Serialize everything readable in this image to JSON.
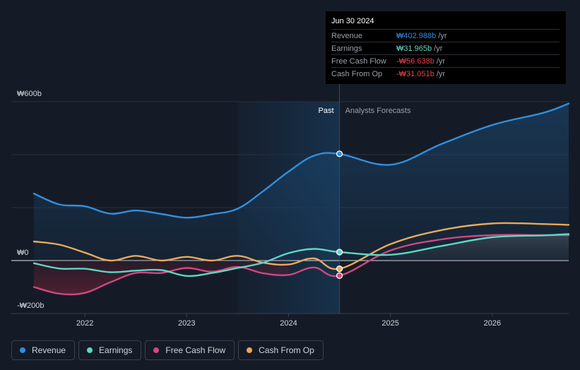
{
  "chart_data": {
    "type": "line",
    "title": "",
    "y_axis": {
      "unit_prefix": "₩",
      "tick_labels": [
        "₩600b",
        "₩0",
        "-₩200b"
      ],
      "ylim": [
        -200,
        600
      ]
    },
    "x_axis": {
      "tick_labels": [
        "2022",
        "2023",
        "2024",
        "2025",
        "2026"
      ],
      "xlim": [
        2021.5,
        2026.75
      ]
    },
    "divider_x": 2024.5,
    "past_shade_start": 2023.5,
    "region_labels": {
      "past": "Past",
      "forecast": "Analysts Forecasts"
    },
    "series": [
      {
        "name": "Revenue",
        "color": "#2f8fe0",
        "fill": true,
        "points": [
          [
            2021.5,
            253
          ],
          [
            2021.75,
            212
          ],
          [
            2022.0,
            205
          ],
          [
            2022.25,
            177
          ],
          [
            2022.5,
            189
          ],
          [
            2022.75,
            176
          ],
          [
            2023.0,
            162
          ],
          [
            2023.25,
            175
          ],
          [
            2023.5,
            196
          ],
          [
            2023.75,
            262
          ],
          [
            2024.0,
            336
          ],
          [
            2024.25,
            396
          ],
          [
            2024.5,
            403
          ],
          [
            2025.0,
            362
          ],
          [
            2025.5,
            440
          ],
          [
            2026.0,
            512
          ],
          [
            2026.5,
            558
          ],
          [
            2026.75,
            593
          ]
        ]
      },
      {
        "name": "Earnings",
        "color": "#5ed6c4",
        "fill": false,
        "points": [
          [
            2021.5,
            -10
          ],
          [
            2021.75,
            -30
          ],
          [
            2022.0,
            -31
          ],
          [
            2022.25,
            -44
          ],
          [
            2022.5,
            -38
          ],
          [
            2022.75,
            -36
          ],
          [
            2023.0,
            -58
          ],
          [
            2023.25,
            -47
          ],
          [
            2023.5,
            -28
          ],
          [
            2023.75,
            -8
          ],
          [
            2024.0,
            28
          ],
          [
            2024.25,
            44
          ],
          [
            2024.5,
            32
          ],
          [
            2025.0,
            22
          ],
          [
            2025.5,
            55
          ],
          [
            2026.0,
            88
          ],
          [
            2026.5,
            95
          ],
          [
            2026.75,
            100
          ]
        ]
      },
      {
        "name": "Free Cash Flow",
        "color": "#d0477f",
        "fill": false,
        "points": [
          [
            2021.5,
            -100
          ],
          [
            2021.75,
            -125
          ],
          [
            2022.0,
            -122
          ],
          [
            2022.25,
            -82
          ],
          [
            2022.5,
            -47
          ],
          [
            2022.75,
            -47
          ],
          [
            2023.0,
            -28
          ],
          [
            2023.25,
            -42
          ],
          [
            2023.5,
            -24
          ],
          [
            2023.75,
            -48
          ],
          [
            2024.0,
            -54
          ],
          [
            2024.25,
            -26
          ],
          [
            2024.5,
            -57
          ],
          [
            2025.0,
            38
          ],
          [
            2025.5,
            80
          ],
          [
            2026.0,
            96
          ],
          [
            2026.5,
            96
          ],
          [
            2026.75,
            96
          ]
        ]
      },
      {
        "name": "Cash From Op",
        "color": "#e8a95a",
        "fill": false,
        "points": [
          [
            2021.5,
            72
          ],
          [
            2021.75,
            60
          ],
          [
            2022.0,
            30
          ],
          [
            2022.25,
            0
          ],
          [
            2022.5,
            18
          ],
          [
            2022.75,
            0
          ],
          [
            2023.0,
            14
          ],
          [
            2023.25,
            0
          ],
          [
            2023.5,
            18
          ],
          [
            2023.75,
            -8
          ],
          [
            2024.0,
            -15
          ],
          [
            2024.25,
            8
          ],
          [
            2024.5,
            -31
          ],
          [
            2025.0,
            62
          ],
          [
            2025.5,
            115
          ],
          [
            2026.0,
            140
          ],
          [
            2026.5,
            138
          ],
          [
            2026.75,
            135
          ]
        ]
      }
    ],
    "highlight_x": 2024.5
  },
  "tooltip": {
    "date": "Jun 30 2024",
    "rows": [
      {
        "label": "Revenue",
        "value": "₩402.988b",
        "unit": "/yr",
        "color": "#2f8fe0"
      },
      {
        "label": "Earnings",
        "value": "₩31.965b",
        "unit": "/yr",
        "color": "#5ed6c4"
      },
      {
        "label": "Free Cash Flow",
        "value": "-₩56.638b",
        "unit": "/yr",
        "color": "#e8414a"
      },
      {
        "label": "Cash From Op",
        "value": "-₩31.051b",
        "unit": "/yr",
        "color": "#e8414a"
      }
    ]
  },
  "legend": [
    {
      "label": "Revenue",
      "color": "#2f8fe0"
    },
    {
      "label": "Earnings",
      "color": "#5ed6c4"
    },
    {
      "label": "Free Cash Flow",
      "color": "#d0477f"
    },
    {
      "label": "Cash From Op",
      "color": "#e8a95a"
    }
  ]
}
